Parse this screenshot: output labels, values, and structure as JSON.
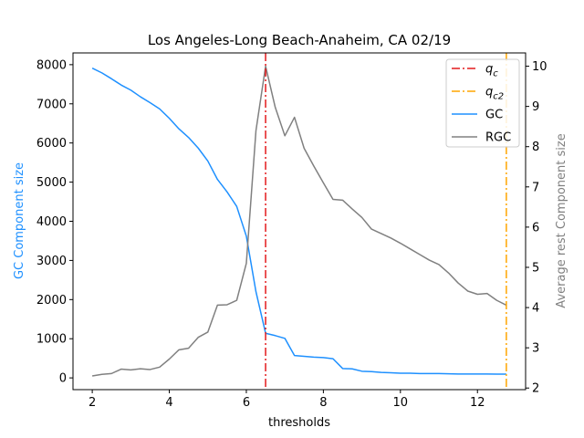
{
  "chart_data": {
    "type": "line",
    "title": "Los Angeles-Long Beach-Anaheim, CA 02/19",
    "xlabel": "thresholds",
    "ylabel_left": "GC Component size",
    "ylabel_right": "Average rest Component size",
    "xlim": [
      1.5,
      13.25
    ],
    "ylim_left": [
      -300,
      8300
    ],
    "ylim_right": [
      1.96,
      10.33
    ],
    "x_ticks": [
      2,
      4,
      6,
      8,
      10,
      12
    ],
    "y_ticks_left": [
      0,
      1000,
      2000,
      3000,
      4000,
      5000,
      6000,
      7000,
      8000
    ],
    "y_ticks_right": [
      2,
      3,
      4,
      5,
      6,
      7,
      8,
      9,
      10
    ],
    "vlines": [
      {
        "name": "q_c",
        "sub": "c",
        "x": 6.5,
        "color": "#e31a1c"
      },
      {
        "name": "q_c2",
        "sub": "c2",
        "x": 12.75,
        "color": "#ffa500"
      }
    ],
    "legend_placement": "top-right",
    "series": [
      {
        "name": "GC",
        "axis": "left",
        "color": "#1e90ff",
        "x": [
          2.0,
          2.25,
          2.5,
          2.75,
          3.0,
          3.25,
          3.5,
          3.75,
          4.0,
          4.25,
          4.5,
          4.75,
          5.0,
          5.25,
          5.5,
          5.75,
          6.0,
          6.25,
          6.5,
          6.75,
          7.0,
          7.25,
          7.5,
          7.75,
          8.0,
          8.25,
          8.5,
          8.75,
          9.0,
          9.25,
          9.5,
          9.75,
          10.0,
          10.25,
          10.5,
          10.75,
          11.0,
          11.25,
          11.5,
          11.75,
          12.0,
          12.25,
          12.5,
          12.75
        ],
        "values": [
          7910,
          7790,
          7640,
          7480,
          7350,
          7180,
          7030,
          6870,
          6630,
          6360,
          6140,
          5870,
          5540,
          5070,
          4750,
          4380,
          3620,
          2200,
          1140,
          1080,
          1010,
          570,
          550,
          530,
          520,
          490,
          240,
          230,
          170,
          160,
          140,
          130,
          120,
          120,
          110,
          110,
          110,
          105,
          100,
          100,
          100,
          98,
          96,
          95
        ]
      },
      {
        "name": "RGC",
        "axis": "right",
        "color": "#808080",
        "x": [
          2.0,
          2.25,
          2.5,
          2.75,
          3.0,
          3.25,
          3.5,
          3.75,
          4.0,
          4.25,
          4.5,
          4.75,
          5.0,
          5.25,
          5.5,
          5.75,
          6.0,
          6.25,
          6.5,
          6.75,
          7.0,
          7.25,
          7.5,
          7.75,
          8.0,
          8.25,
          8.5,
          8.75,
          9.0,
          9.25,
          9.5,
          9.75,
          10.0,
          10.25,
          10.5,
          10.75,
          11.0,
          11.25,
          11.5,
          11.75,
          12.0,
          12.25,
          12.5,
          12.75
        ],
        "values": [
          2.3,
          2.34,
          2.36,
          2.47,
          2.45,
          2.48,
          2.46,
          2.52,
          2.72,
          2.95,
          2.99,
          3.26,
          3.39,
          4.06,
          4.07,
          4.18,
          5.1,
          8.4,
          10.0,
          8.98,
          8.27,
          8.73,
          7.96,
          7.52,
          7.1,
          6.69,
          6.67,
          6.45,
          6.24,
          5.95,
          5.84,
          5.73,
          5.6,
          5.46,
          5.32,
          5.18,
          5.07,
          4.86,
          4.61,
          4.41,
          4.33,
          4.35,
          4.18,
          4.06
        ]
      }
    ]
  }
}
